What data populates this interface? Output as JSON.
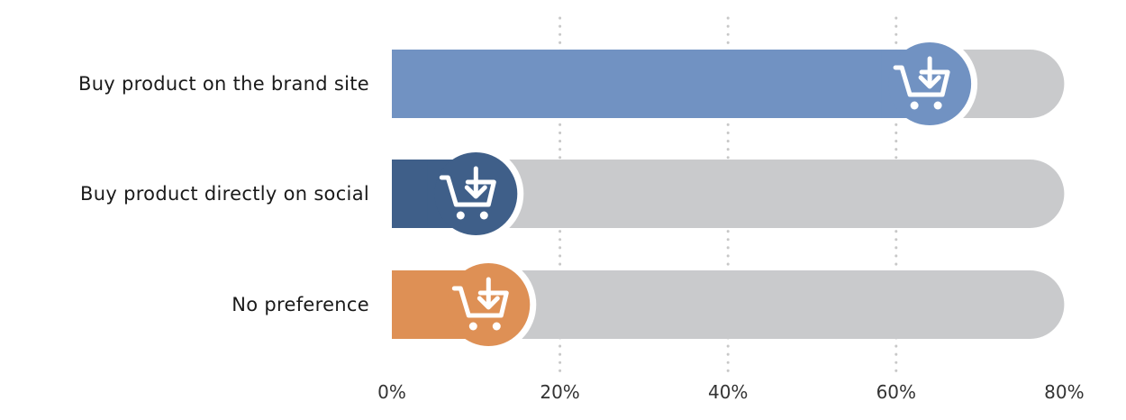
{
  "chart_data": {
    "type": "bar",
    "orientation": "horizontal",
    "categories": [
      "Buy product on the brand site",
      "Buy product directly on social",
      "No preference"
    ],
    "values": [
      64,
      10,
      11.5
    ],
    "xlim": [
      0,
      80
    ],
    "xticks": [
      "0%",
      "20%",
      "40%",
      "60%",
      "80%"
    ],
    "tick_values": [
      0,
      20,
      40,
      60,
      80
    ],
    "grid": "vertical dotted",
    "marker_icon": "shopping-cart-download-icon",
    "colors": {
      "bars": [
        "#7192c2",
        "#3f5f89",
        "#de9055"
      ],
      "track": "#c9cacc",
      "grid": "#c8c8c8",
      "icon": "#ffffff"
    }
  }
}
